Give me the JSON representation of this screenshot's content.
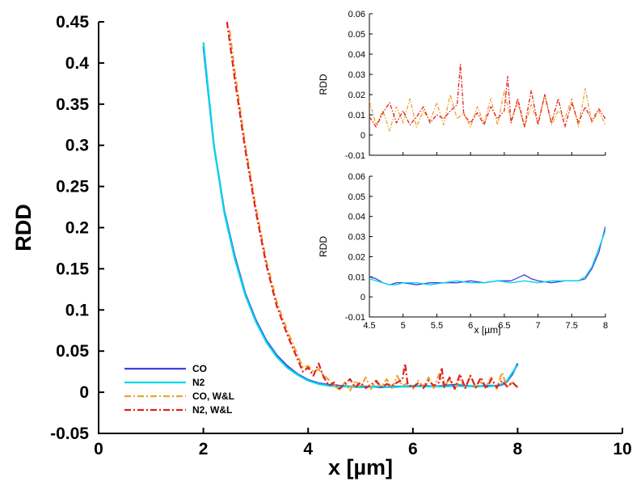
{
  "chart_data": [
    {
      "type": "line",
      "title": "",
      "xlabel": "x [µm]",
      "ylabel": "RDD",
      "xlim": [
        0,
        10
      ],
      "ylim": [
        -0.05,
        0.45
      ],
      "xticks": [
        0,
        2,
        4,
        6,
        8,
        10
      ],
      "yticks": [
        -0.05,
        0,
        0.05,
        0.1,
        0.15,
        0.2,
        0.25,
        0.3,
        0.35,
        0.4,
        0.45
      ],
      "xtick_labels": [
        "0",
        "2",
        "4",
        "6",
        "8",
        "10"
      ],
      "ytick_labels": [
        "-0.05",
        "0",
        "0.05",
        "0.1",
        "0.15",
        "0.2",
        "0.25",
        "0.3",
        "0.35",
        "0.4",
        "0.45"
      ],
      "legend_position": "bottom-left",
      "series": [
        {
          "name": "CO",
          "color": "#4040e0",
          "style": "solid",
          "x": [
            2.0,
            2.2,
            2.4,
            2.6,
            2.8,
            3.0,
            3.2,
            3.4,
            3.6,
            3.8,
            4.0,
            4.2,
            4.4,
            4.6,
            4.8,
            5.0,
            5.2,
            5.4,
            5.6,
            5.8,
            6.0,
            6.2,
            6.4,
            6.6,
            6.8,
            7.0,
            7.2,
            7.4,
            7.6,
            7.7,
            7.8,
            7.9,
            8.0
          ],
          "y": [
            0.42,
            0.3,
            0.22,
            0.165,
            0.12,
            0.088,
            0.063,
            0.045,
            0.032,
            0.022,
            0.015,
            0.011,
            0.009,
            0.008,
            0.007,
            0.007,
            0.007,
            0.006,
            0.007,
            0.007,
            0.007,
            0.008,
            0.007,
            0.008,
            0.009,
            0.008,
            0.007,
            0.008,
            0.008,
            0.009,
            0.013,
            0.022,
            0.035
          ]
        },
        {
          "name": "N2",
          "color": "#00d8e8",
          "style": "solid",
          "x": [
            2.0,
            2.2,
            2.4,
            2.6,
            2.8,
            3.0,
            3.2,
            3.4,
            3.6,
            3.8,
            4.0,
            4.2,
            4.4,
            4.6,
            4.8,
            5.0,
            5.2,
            5.4,
            5.6,
            5.8,
            6.0,
            6.2,
            6.4,
            6.6,
            6.8,
            7.0,
            7.2,
            7.4,
            7.6,
            7.7,
            7.8,
            7.9,
            8.0
          ],
          "y": [
            0.425,
            0.3,
            0.218,
            0.162,
            0.118,
            0.086,
            0.061,
            0.043,
            0.03,
            0.021,
            0.014,
            0.01,
            0.008,
            0.007,
            0.007,
            0.006,
            0.007,
            0.007,
            0.006,
            0.007,
            0.008,
            0.007,
            0.007,
            0.007,
            0.008,
            0.007,
            0.008,
            0.007,
            0.008,
            0.01,
            0.014,
            0.024,
            0.033
          ]
        },
        {
          "name": "CO, W&L",
          "color": "#f0a030",
          "style": "dash-dot",
          "x": [
            2.5,
            2.6,
            2.8,
            3.0,
            3.2,
            3.4,
            3.6,
            3.8,
            3.9,
            4.0,
            4.1,
            4.2,
            4.3,
            4.4,
            4.5,
            4.6,
            4.7,
            4.8,
            4.9,
            5.0,
            5.1,
            5.2,
            5.3,
            5.4,
            5.5,
            5.6,
            5.7,
            5.8,
            5.9,
            6.0,
            6.1,
            6.2,
            6.3,
            6.4,
            6.5,
            6.6,
            6.7,
            6.8,
            6.9,
            7.0,
            7.1,
            7.2,
            7.3,
            7.4,
            7.5,
            7.6,
            7.7,
            7.8,
            7.9,
            8.0
          ],
          "y": [
            0.44,
            0.39,
            0.3,
            0.225,
            0.16,
            0.11,
            0.075,
            0.045,
            0.03,
            0.032,
            0.025,
            0.028,
            0.02,
            0.015,
            0.008,
            0.003,
            0.012,
            0.002,
            0.014,
            0.006,
            0.018,
            0.004,
            0.012,
            0.007,
            0.016,
            0.005,
            0.02,
            0.008,
            0.011,
            0.004,
            0.014,
            0.006,
            0.018,
            0.005,
            0.022,
            0.007,
            0.016,
            0.004,
            0.015,
            0.006,
            0.02,
            0.005,
            0.012,
            0.008,
            0.018,
            0.004,
            0.024,
            0.006,
            0.012,
            0.005
          ]
        },
        {
          "name": "N2, W&L",
          "color": "#e02020",
          "style": "dash-dot",
          "x": [
            2.45,
            2.6,
            2.8,
            3.0,
            3.2,
            3.4,
            3.6,
            3.8,
            3.9,
            4.0,
            4.1,
            4.2,
            4.3,
            4.4,
            4.5,
            4.6,
            4.7,
            4.8,
            4.9,
            5.0,
            5.1,
            5.2,
            5.3,
            5.4,
            5.5,
            5.6,
            5.7,
            5.8,
            5.85,
            5.9,
            6.0,
            6.1,
            6.2,
            6.3,
            6.4,
            6.5,
            6.55,
            6.6,
            6.7,
            6.8,
            6.9,
            7.0,
            7.1,
            7.2,
            7.3,
            7.4,
            7.5,
            7.6,
            7.7,
            7.8,
            7.9,
            8.0
          ],
          "y": [
            0.45,
            0.38,
            0.295,
            0.22,
            0.155,
            0.105,
            0.07,
            0.04,
            0.025,
            0.03,
            0.02,
            0.035,
            0.018,
            0.008,
            0.012,
            0.004,
            0.01,
            0.016,
            0.006,
            0.012,
            0.005,
            0.009,
            0.014,
            0.006,
            0.01,
            0.008,
            0.012,
            0.015,
            0.035,
            0.01,
            0.006,
            0.011,
            0.005,
            0.014,
            0.008,
            0.012,
            0.03,
            0.006,
            0.018,
            0.004,
            0.022,
            0.005,
            0.02,
            0.006,
            0.018,
            0.004,
            0.016,
            0.006,
            0.014,
            0.007,
            0.012,
            0.006
          ]
        }
      ]
    },
    {
      "type": "line",
      "title": "",
      "xlabel": "",
      "ylabel": "RDD",
      "xlim": [
        4.5,
        8
      ],
      "ylim": [
        -0.01,
        0.06
      ],
      "yticks": [
        -0.01,
        0,
        0.01,
        0.02,
        0.03,
        0.04,
        0.05,
        0.06
      ],
      "ytick_labels": [
        "-0.01",
        "0",
        "0.01",
        "0.02",
        "0.03",
        "0.04",
        "0.05",
        "0.06"
      ],
      "series": [
        {
          "name": "CO, W&L",
          "color": "#f0a030",
          "style": "dash-dot",
          "x": [
            4.5,
            4.6,
            4.7,
            4.8,
            4.9,
            5.0,
            5.1,
            5.2,
            5.3,
            5.4,
            5.5,
            5.6,
            5.7,
            5.8,
            5.9,
            6.0,
            6.1,
            6.2,
            6.3,
            6.4,
            6.5,
            6.6,
            6.7,
            6.8,
            6.9,
            7.0,
            7.1,
            7.2,
            7.3,
            7.4,
            7.5,
            7.6,
            7.7,
            7.8,
            7.9,
            8.0
          ],
          "y": [
            0.017,
            0.005,
            0.012,
            0.002,
            0.014,
            0.006,
            0.018,
            0.004,
            0.012,
            0.007,
            0.016,
            0.005,
            0.02,
            0.008,
            0.011,
            0.004,
            0.014,
            0.006,
            0.018,
            0.005,
            0.022,
            0.007,
            0.016,
            0.004,
            0.015,
            0.006,
            0.02,
            0.005,
            0.012,
            0.008,
            0.018,
            0.004,
            0.023,
            0.006,
            0.012,
            0.005
          ]
        },
        {
          "name": "N2, W&L",
          "color": "#e02020",
          "style": "dash-dot",
          "x": [
            4.5,
            4.6,
            4.7,
            4.8,
            4.9,
            5.0,
            5.1,
            5.2,
            5.3,
            5.4,
            5.5,
            5.6,
            5.7,
            5.8,
            5.85,
            5.9,
            6.0,
            6.1,
            6.2,
            6.3,
            6.4,
            6.5,
            6.55,
            6.6,
            6.7,
            6.8,
            6.9,
            7.0,
            7.1,
            7.2,
            7.3,
            7.4,
            7.5,
            7.6,
            7.7,
            7.8,
            7.9,
            8.0
          ],
          "y": [
            0.009,
            0.004,
            0.011,
            0.016,
            0.006,
            0.012,
            0.005,
            0.009,
            0.014,
            0.006,
            0.01,
            0.008,
            0.012,
            0.015,
            0.035,
            0.01,
            0.006,
            0.011,
            0.005,
            0.014,
            0.008,
            0.012,
            0.029,
            0.006,
            0.018,
            0.004,
            0.022,
            0.005,
            0.02,
            0.006,
            0.018,
            0.004,
            0.016,
            0.006,
            0.014,
            0.007,
            0.013,
            0.008
          ]
        }
      ]
    },
    {
      "type": "line",
      "title": "",
      "xlabel": "x [µm]",
      "ylabel": "RDD",
      "xlim": [
        4.5,
        8
      ],
      "ylim": [
        -0.01,
        0.06
      ],
      "xticks": [
        4.5,
        5,
        5.5,
        6,
        6.5,
        7,
        7.5,
        8
      ],
      "xtick_labels": [
        "4.5",
        "5",
        "5.5",
        "6",
        "6.5",
        "7",
        "7.5",
        "8"
      ],
      "yticks": [
        -0.01,
        0,
        0.01,
        0.02,
        0.03,
        0.04,
        0.05,
        0.06
      ],
      "ytick_labels": [
        "-0.01",
        "0",
        "0.01",
        "0.02",
        "0.03",
        "0.04",
        "0.05",
        "0.06"
      ],
      "series": [
        {
          "name": "CO",
          "color": "#4040e0",
          "style": "solid",
          "x": [
            4.5,
            4.6,
            4.7,
            4.8,
            4.9,
            5.0,
            5.2,
            5.4,
            5.6,
            5.8,
            6.0,
            6.2,
            6.4,
            6.6,
            6.8,
            6.9,
            7.0,
            7.2,
            7.4,
            7.6,
            7.7,
            7.8,
            7.9,
            8.0
          ],
          "y": [
            0.01,
            0.009,
            0.007,
            0.006,
            0.007,
            0.007,
            0.006,
            0.007,
            0.007,
            0.007,
            0.008,
            0.007,
            0.008,
            0.008,
            0.011,
            0.009,
            0.008,
            0.007,
            0.008,
            0.008,
            0.009,
            0.014,
            0.022,
            0.035
          ]
        },
        {
          "name": "N2",
          "color": "#00d8e8",
          "style": "solid",
          "x": [
            4.5,
            4.6,
            4.7,
            4.8,
            4.9,
            5.0,
            5.2,
            5.4,
            5.6,
            5.8,
            6.0,
            6.2,
            6.4,
            6.6,
            6.8,
            7.0,
            7.2,
            7.4,
            7.6,
            7.7,
            7.8,
            7.9,
            8.0
          ],
          "y": [
            0.009,
            0.008,
            0.007,
            0.006,
            0.006,
            0.007,
            0.007,
            0.006,
            0.007,
            0.008,
            0.007,
            0.007,
            0.008,
            0.007,
            0.008,
            0.007,
            0.008,
            0.008,
            0.008,
            0.01,
            0.015,
            0.024,
            0.033
          ]
        }
      ]
    }
  ]
}
